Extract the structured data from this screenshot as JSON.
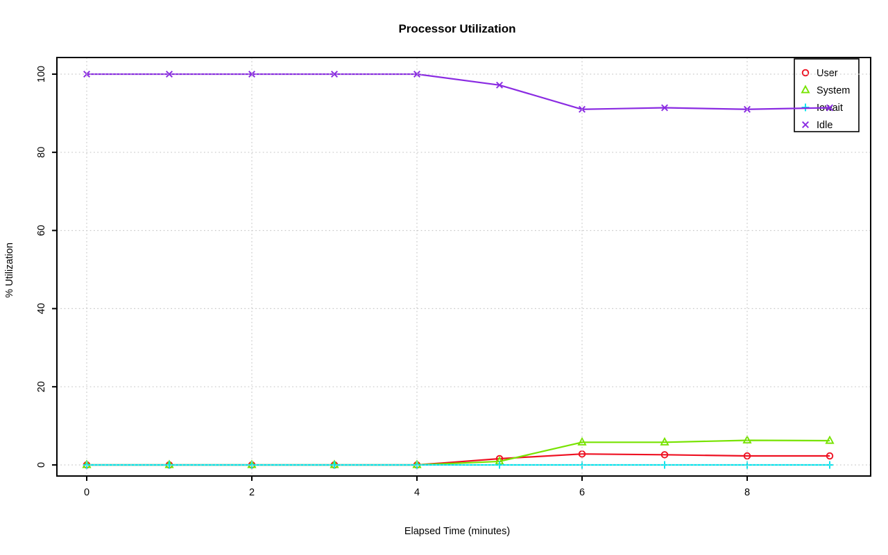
{
  "figure": {
    "kind": "R-style line plot",
    "background": "#ffffff"
  },
  "chart_data": {
    "type": "line",
    "title": "Processor Utilization",
    "xlabel": "Elapsed Time (minutes)",
    "ylabel": "% Utilization",
    "x": [
      0,
      1,
      2,
      3,
      4,
      5,
      6,
      7,
      8,
      9
    ],
    "series": [
      {
        "name": "User",
        "color": "#ee1122",
        "marker": "circle",
        "values": [
          0,
          0,
          0,
          0,
          0,
          1.6,
          2.8,
          2.6,
          2.3,
          2.3
        ]
      },
      {
        "name": "System",
        "color": "#77e300",
        "marker": "triangle",
        "values": [
          0,
          0,
          0,
          0,
          0,
          0.9,
          5.8,
          5.8,
          6.3,
          6.2
        ]
      },
      {
        "name": "Iowait",
        "color": "#00e5ee",
        "marker": "plus",
        "values": [
          0,
          0,
          0,
          0,
          0,
          0,
          0,
          0,
          0,
          0
        ]
      },
      {
        "name": "Idle",
        "color": "#8a2be2",
        "marker": "x",
        "values": [
          100,
          100,
          100,
          100,
          100,
          97.2,
          91,
          91.4,
          91,
          91.4
        ]
      }
    ],
    "xticks": [
      0,
      2,
      4,
      6,
      8
    ],
    "yticks": [
      0,
      20,
      40,
      60,
      80,
      100
    ],
    "xlim": [
      0,
      9
    ],
    "ylim": [
      0,
      100
    ],
    "grid": "dotted light-gray gridlines at every tick, drawn over the data lines",
    "legend_position": "top-right",
    "legend_entries": [
      "User",
      "System",
      "Iowait",
      "Idle"
    ]
  },
  "style": {
    "axis_color": "#000000",
    "grid_color": "#c9c9c9",
    "text_color": "#000000",
    "background": "#ffffff"
  }
}
